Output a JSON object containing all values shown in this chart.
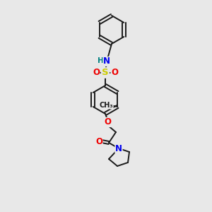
{
  "background_color": "#e8e8e8",
  "bond_color": "#1a1a1a",
  "atom_colors": {
    "N": "#0000ee",
    "O": "#ee0000",
    "S": "#cccc00",
    "H": "#008080",
    "C": "#1a1a1a"
  },
  "figsize": [
    3.0,
    3.0
  ],
  "dpi": 100,
  "bond_lw": 1.4,
  "font_size_atom": 8.5,
  "ring_r": 20
}
